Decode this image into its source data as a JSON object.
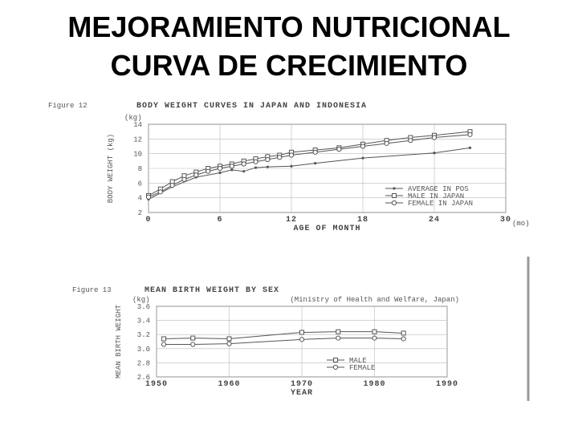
{
  "title": [
    "MEJORAMIENTO NUTRICIONAL",
    "CURVA DE CRECIMIENTO"
  ],
  "chart_data": [
    {
      "type": "line",
      "figure": "Figure 12",
      "title": "BODY WEIGHT CURVES IN JAPAN AND INDONESIA",
      "y_unit": "(kg)",
      "y_label": "BODY WEIGHT (kg)",
      "x_label": "AGE OF MONTH",
      "x_unit": "(mo)",
      "xlim": [
        0,
        30
      ],
      "xticks": [
        0,
        6,
        12,
        18,
        24,
        30
      ],
      "ylim": [
        2,
        14
      ],
      "yticks": [
        2,
        4,
        6,
        8,
        10,
        12,
        14
      ],
      "grid": true,
      "legend": "lower right",
      "series": [
        {
          "name": "AVERAGE IN POS",
          "color": "#555555",
          "marker": "dot",
          "x": [
            0,
            2,
            4,
            6,
            7,
            8,
            9,
            10,
            12,
            14,
            18,
            24,
            27
          ],
          "values": [
            3.8,
            5.5,
            6.8,
            7.4,
            7.8,
            7.6,
            8.1,
            8.2,
            8.3,
            8.7,
            9.4,
            10.1,
            10.8
          ]
        },
        {
          "name": "MALE IN JAPAN",
          "color": "#555555",
          "marker": "square",
          "x": [
            0,
            1,
            2,
            3,
            4,
            5,
            6,
            7,
            8,
            9,
            10,
            11,
            12,
            14,
            16,
            18,
            20,
            22,
            24,
            27
          ],
          "values": [
            4.3,
            5.2,
            6.2,
            7.0,
            7.5,
            8.0,
            8.3,
            8.6,
            9.0,
            9.3,
            9.6,
            9.8,
            10.2,
            10.5,
            10.8,
            11.3,
            11.8,
            12.2,
            12.5,
            13.0
          ]
        },
        {
          "name": "FEMALE IN JAPAN",
          "color": "#555555",
          "marker": "circle",
          "x": [
            0,
            1,
            2,
            3,
            4,
            5,
            6,
            7,
            8,
            9,
            10,
            11,
            12,
            14,
            16,
            18,
            20,
            22,
            24,
            27
          ],
          "values": [
            4.1,
            4.8,
            5.7,
            6.5,
            7.1,
            7.6,
            8.0,
            8.3,
            8.6,
            8.9,
            9.2,
            9.5,
            9.8,
            10.2,
            10.6,
            11.0,
            11.4,
            11.8,
            12.2,
            12.6
          ]
        }
      ]
    },
    {
      "type": "line",
      "figure": "Figure 13",
      "title": "MEAN BIRTH WEIGHT BY SEX",
      "subtitle": "(Ministry of Health and Welfare, Japan)",
      "y_unit": "(kg)",
      "y_label": "MEAN BIRTH WEIGHT",
      "x_label": "YEAR",
      "xlim": [
        1950,
        1990
      ],
      "xticks": [
        1950,
        1960,
        1970,
        1980,
        1990
      ],
      "ylim": [
        2.6,
        3.6
      ],
      "yticks": [
        2.6,
        2.8,
        {
          "value": 3,
          "label": "3.0"
        },
        3.2,
        3.4,
        3.6
      ],
      "grid": true,
      "legend": "lower right",
      "series": [
        {
          "name": "MALE",
          "color": "#555555",
          "marker": "square",
          "x": [
            1951,
            1955,
            1960,
            1970,
            1975,
            1980,
            1984
          ],
          "values": [
            3.14,
            3.15,
            3.14,
            3.23,
            3.24,
            3.24,
            3.22
          ]
        },
        {
          "name": "FEMALE",
          "color": "#555555",
          "marker": "circle",
          "x": [
            1951,
            1955,
            1960,
            1970,
            1975,
            1980,
            1984
          ],
          "values": [
            3.06,
            3.06,
            3.07,
            3.13,
            3.15,
            3.15,
            3.14
          ]
        }
      ]
    }
  ]
}
